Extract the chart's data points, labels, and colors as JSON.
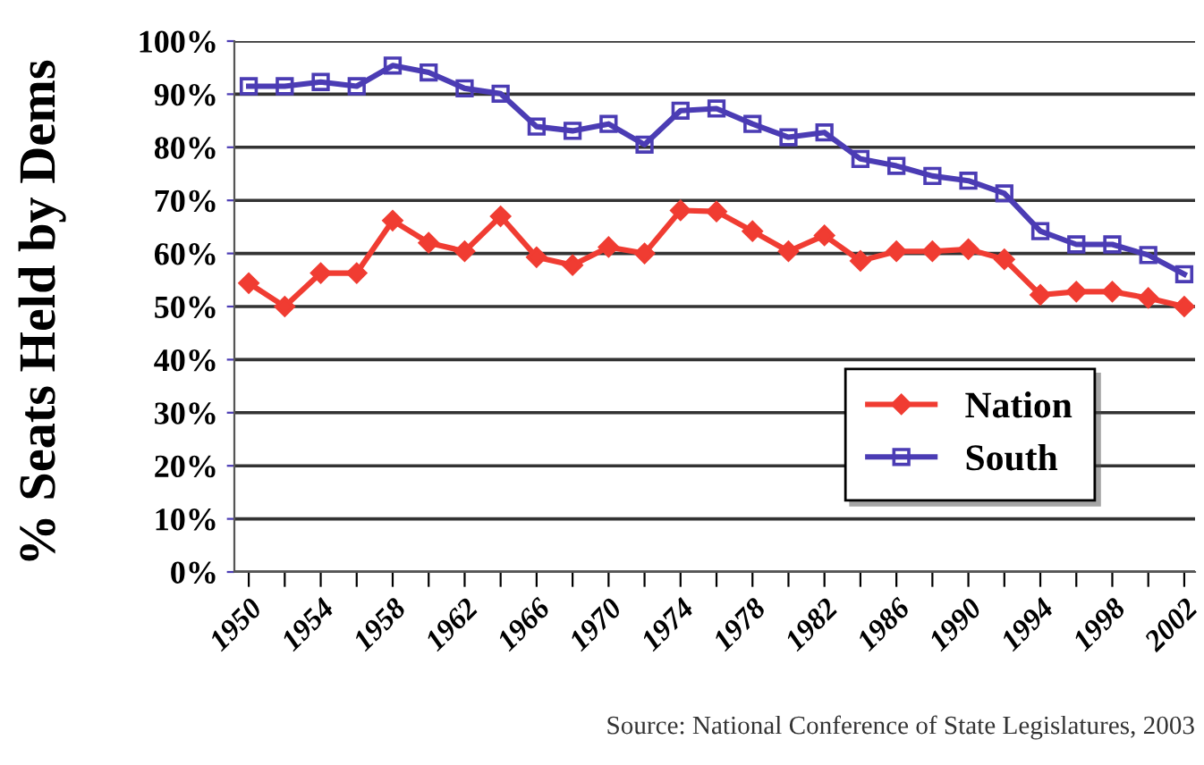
{
  "chart_data": {
    "type": "line",
    "ylabel": "% Seats Held by Dems",
    "categories": [
      "1950",
      null,
      "1954",
      null,
      "1958",
      null,
      "1962",
      null,
      "1966",
      null,
      "1970",
      null,
      "1974",
      null,
      "1978",
      null,
      "1982",
      null,
      "1986",
      null,
      "1990",
      null,
      "1994",
      null,
      "1998",
      null,
      "2002"
    ],
    "series": [
      {
        "name": "Nation",
        "color": "#f03c32",
        "marker": "diamond",
        "values": [
          54.4,
          50,
          56.3,
          56.3,
          66.2,
          62,
          60.4,
          67,
          59.3,
          57.8,
          61.2,
          60,
          68.1,
          67.9,
          64.2,
          60.4,
          63.4,
          58.6,
          60.4,
          60.4,
          60.8,
          58.9,
          52.2,
          52.8,
          52.8,
          51.6,
          50
        ]
      },
      {
        "name": "South",
        "color": "#4b3cb4",
        "marker": "square",
        "values": [
          91.5,
          91.5,
          92.3,
          91.5,
          95.4,
          94.1,
          91.1,
          90.1,
          83.9,
          83.1,
          84.4,
          80.5,
          86.9,
          87.3,
          84.4,
          81.9,
          82.8,
          77.8,
          76.5,
          74.6,
          73.7,
          71.3,
          64.2,
          61.7,
          61.7,
          59.7,
          56.1
        ]
      }
    ],
    "ylim": [
      0,
      100
    ],
    "yticks": [
      {
        "value": 0,
        "label": "0%"
      },
      {
        "value": 10,
        "label": "10%"
      },
      {
        "value": 20,
        "label": "20%"
      },
      {
        "value": 30,
        "label": "30%"
      },
      {
        "value": 40,
        "label": "40%"
      },
      {
        "value": 50,
        "label": "50%"
      },
      {
        "value": 60,
        "label": "60%"
      },
      {
        "value": 70,
        "label": "70%"
      },
      {
        "value": 80,
        "label": "80%"
      },
      {
        "value": 90,
        "label": "90%"
      },
      {
        "value": 100,
        "label": "100%"
      }
    ],
    "grid": "y",
    "legend": "bottom right",
    "line_style": "solid",
    "annotations": [
      "Source: National Conference of State Legislatures, 2003"
    ]
  }
}
